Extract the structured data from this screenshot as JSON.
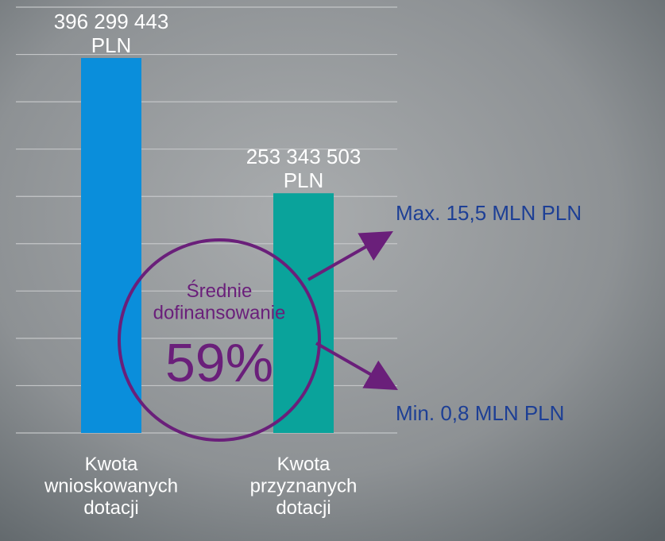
{
  "chart_data": {
    "type": "bar",
    "categories": [
      "Kwota\nwnioskowanych\ndotacji",
      "Kwota\nprzyznanych\ndotacji"
    ],
    "values": [
      396299443,
      253343503
    ],
    "value_labels": [
      "396 299 443\nPLN",
      "253 343 503\nPLN"
    ],
    "colors": [
      "#0a8edb",
      "#0aa39b"
    ],
    "ylim": [
      0,
      450000000
    ],
    "yticks": [
      0,
      50000000,
      100000000,
      150000000,
      200000000,
      250000000,
      300000000,
      350000000,
      400000000,
      450000000
    ],
    "grid": true,
    "annotations": {
      "circle_title": "Średnie\ndofinansowanie",
      "circle_value": "59%",
      "max": "Max. 15,5 MLN PLN",
      "min": "Min. 0,8 MLN PLN"
    }
  }
}
